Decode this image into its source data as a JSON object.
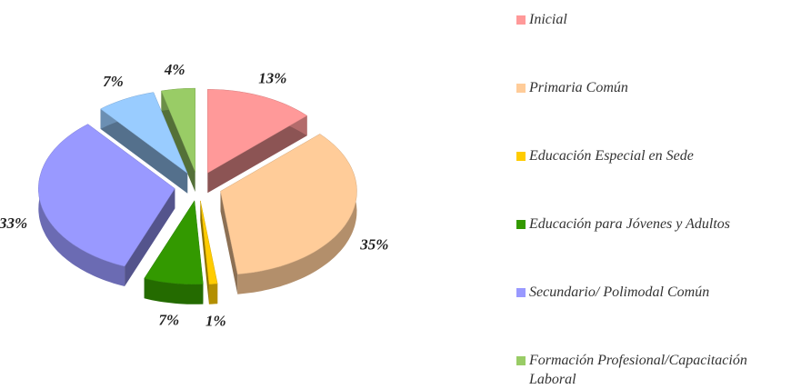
{
  "chart_data": {
    "type": "pie",
    "categories": [
      "Inicial",
      "Primaria Común",
      "Educación Especial en Sede",
      "Educación para Jóvenes y Adultos",
      "Secundario/ Polimodal Común",
      null,
      "Formación Profesional/Capacitación Laboral"
    ],
    "values": [
      13,
      35,
      1,
      7,
      33,
      7,
      4
    ],
    "value_labels": [
      "13%",
      "35%",
      "1%",
      "7%",
      "33%",
      "7%",
      "4%"
    ],
    "colors": [
      "#ff9999",
      "#ffcc99",
      "#ffcc00",
      "#339900",
      "#9999ff",
      "#99ccff",
      "#99cc66"
    ],
    "legend": "right"
  }
}
